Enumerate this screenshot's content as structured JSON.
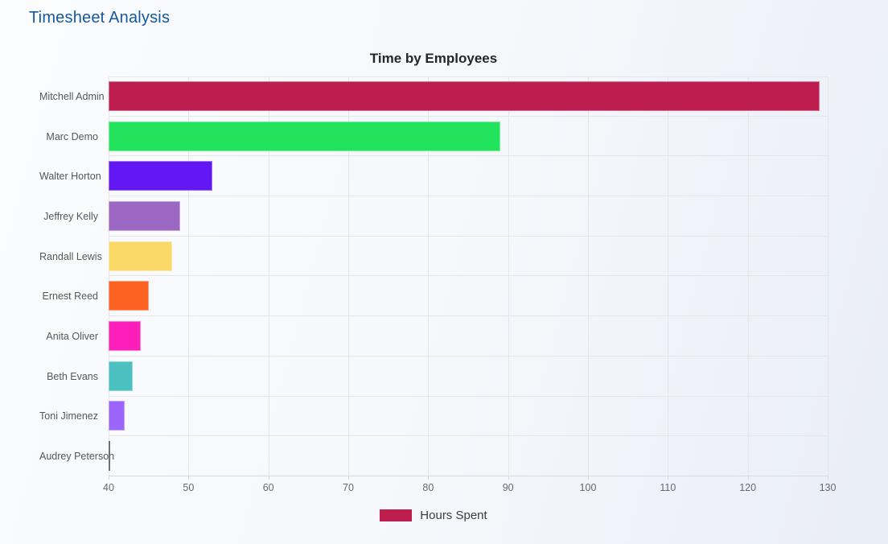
{
  "page": {
    "title": "Timesheet Analysis"
  },
  "colors": {
    "page_title": "#14589E",
    "chart_title": "#23262B",
    "grid": "#e4e6ec",
    "axis_line": "#d6d9df",
    "tick_text": "#65696f",
    "label_text": "#53575e",
    "legend_text": "#3a3d42"
  },
  "chart_data": {
    "type": "bar",
    "orientation": "horizontal",
    "title": "Time by Employees",
    "xlabel": "",
    "ylabel": "",
    "xlim": [
      40,
      130
    ],
    "x_ticks": [
      40,
      50,
      60,
      70,
      80,
      90,
      100,
      110,
      120,
      130
    ],
    "grid": true,
    "legend": {
      "position": "bottom",
      "label": "Hours Spent",
      "swatch_color": "#BD1E4F"
    },
    "series_name": "Hours Spent",
    "categories": [
      "Mitchell Admin",
      "Marc Demo",
      "Walter Horton",
      "Jeffrey Kelly",
      "Randall Lewis",
      "Ernest Reed",
      "Anita Oliver",
      "Beth Evans",
      "Toni Jimenez",
      "Audrey Peterson"
    ],
    "values": [
      129,
      89,
      53,
      49,
      48,
      45,
      44,
      43,
      42,
      40.1
    ],
    "bar_colors": [
      "#BD1E4F",
      "#22E45C",
      "#6118F2",
      "#9D68C4",
      "#FAD969",
      "#FE6220",
      "#FC1DBA",
      "#4BC0C0",
      "#9B64FA",
      "#6E6E78"
    ]
  }
}
